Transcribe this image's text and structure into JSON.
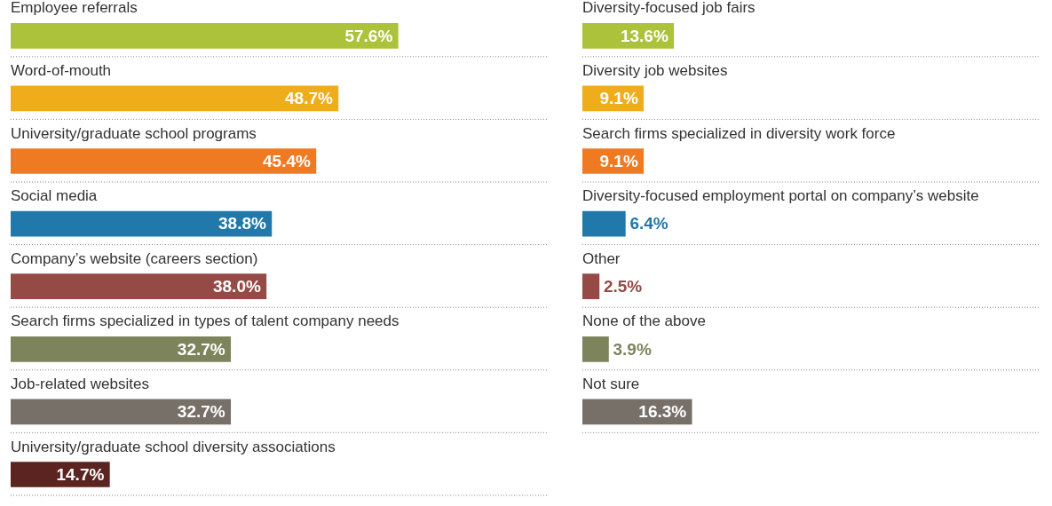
{
  "chart_data": [
    {
      "type": "bar",
      "orientation": "horizontal",
      "categories": [
        "Employee referrals",
        "Word-of-mouth",
        "University/graduate school programs",
        "Social media",
        "Company’s website (careers section)",
        "Search firms specialized in types of talent company needs",
        "Job-related websites",
        "University/graduate school diversity associations"
      ],
      "values": [
        57.6,
        48.7,
        45.4,
        38.8,
        38.0,
        32.7,
        32.7,
        14.7
      ],
      "value_labels": [
        "57.6%",
        "48.7%",
        "45.4%",
        "38.8%",
        "38.0%",
        "32.7%",
        "32.7%",
        "14.7%"
      ],
      "colors": [
        "#acc23a",
        "#f0ad1b",
        "#f07a22",
        "#2078ab",
        "#964a45",
        "#7d845c",
        "#777069",
        "#5b2420"
      ],
      "xlim": [
        0,
        80
      ],
      "tick_labels": false,
      "legend": false,
      "grid": false
    },
    {
      "type": "bar",
      "orientation": "horizontal",
      "categories": [
        "Diversity-focused job fairs",
        "Diversity job websites",
        "Search firms specialized in diversity work force",
        "Diversity-focused employment portal on company’s website",
        "Other",
        "None of the above",
        "Not sure"
      ],
      "values": [
        13.6,
        9.1,
        9.1,
        6.4,
        2.5,
        3.9,
        16.3
      ],
      "value_labels": [
        "13.6%",
        "9.1%",
        "9.1%",
        "6.4%",
        "2.5%",
        "3.9%",
        "16.3%"
      ],
      "colors": [
        "#acc23a",
        "#f0ad1b",
        "#f07a22",
        "#2078ab",
        "#964a45",
        "#7d845c",
        "#777069"
      ],
      "xlim": [
        0,
        68
      ],
      "tick_labels": false,
      "legend": false,
      "grid": false
    }
  ]
}
